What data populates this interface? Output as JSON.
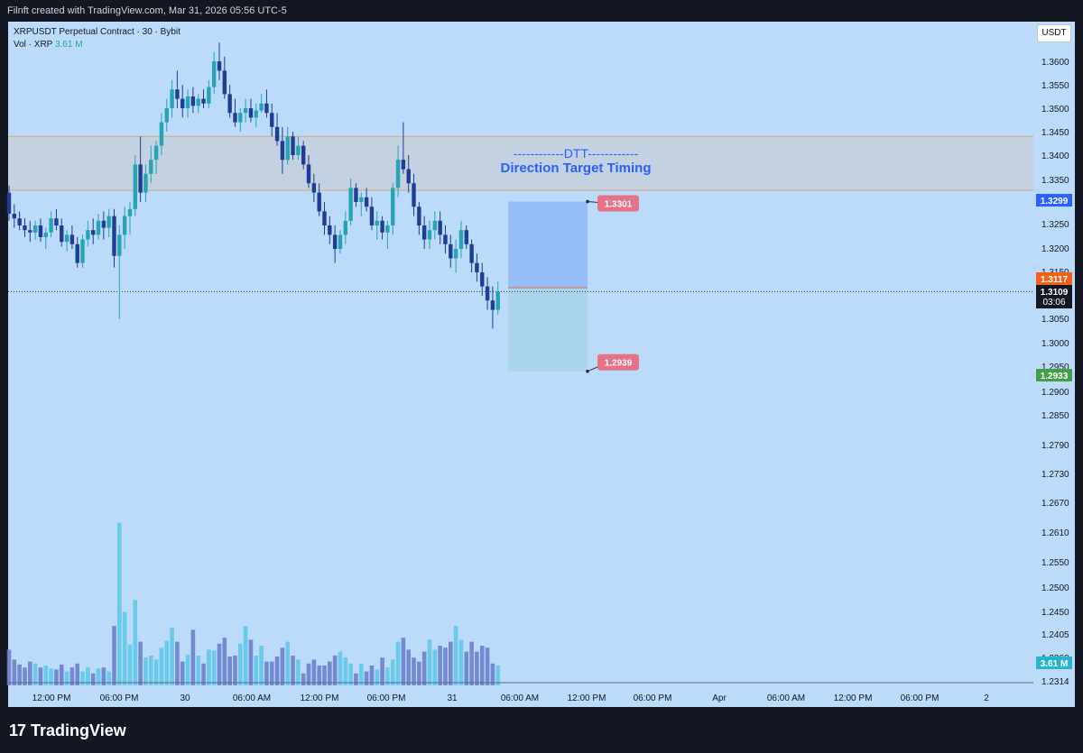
{
  "header": {
    "text": "Filnft created with TradingView.com, Mar 31, 2026 05:56 UTC-5"
  },
  "legend": {
    "symbol": "XRPUSDT Perpetual Contract · 30 · Bybit",
    "vol_label": "Vol · XRP",
    "vol_value": "3.61 M"
  },
  "currency": "USDT",
  "brand": {
    "logo": "17",
    "name": "TradingView"
  },
  "colors": {
    "background": "#bcdafa",
    "up": "#26a4b4",
    "down": "#1e3e96",
    "zone": "#c4cfda",
    "zone_line": "#d4a87a"
  },
  "chart_data": {
    "type": "candlestick",
    "symbol": "XRPUSDT Perpetual Contract",
    "interval": "30",
    "exchange": "Bybit",
    "y_ticks": [
      "1.3600",
      "1.3550",
      "1.3500",
      "1.3450",
      "1.3400",
      "1.3350",
      "1.3250",
      "1.3200",
      "1.3150",
      "1.3050",
      "1.3000",
      "1.2950",
      "1.2900",
      "1.2850",
      "1.2790",
      "1.2730",
      "1.2670",
      "1.2610",
      "1.2550",
      "1.2500",
      "1.2450",
      "1.2405",
      "1.2360",
      "1.2314"
    ],
    "x_ticks": [
      "12:00 PM",
      "06:00 PM",
      "30",
      "06:00 AM",
      "12:00 PM",
      "06:00 PM",
      "31",
      "06:00 AM",
      "12:00 PM",
      "06:00 PM",
      "Apr",
      "06:00 AM",
      "12:00 PM",
      "06:00 PM",
      "2"
    ],
    "price_labels": {
      "upper": "1.3299",
      "last": "1.3117",
      "current": "1.3109",
      "countdown": "03:06",
      "lower": "1.2933",
      "volume": "3.61 M"
    },
    "zone": {
      "low": 1.3325,
      "high": 1.344,
      "title": "------------DTT------------",
      "subtitle": "Direction Target Timing"
    },
    "position": {
      "entry": 1.3117,
      "target": 1.3301,
      "stop": 1.2939,
      "target_label": "1.3301",
      "stop_label": "1.2939"
    },
    "candles": [
      [
        1.332,
        1.3335,
        1.326,
        1.3275,
        36
      ],
      [
        1.3275,
        1.3295,
        1.3245,
        1.3265,
        26
      ],
      [
        1.3265,
        1.328,
        1.324,
        1.325,
        21
      ],
      [
        1.325,
        1.3265,
        1.3225,
        1.324,
        18
      ],
      [
        1.324,
        1.326,
        1.3215,
        1.3235,
        24
      ],
      [
        1.3235,
        1.326,
        1.322,
        1.325,
        22
      ],
      [
        1.325,
        1.3265,
        1.3215,
        1.3225,
        18
      ],
      [
        1.3225,
        1.3245,
        1.32,
        1.3235,
        20
      ],
      [
        1.3235,
        1.328,
        1.3225,
        1.3265,
        17
      ],
      [
        1.3265,
        1.3285,
        1.324,
        1.325,
        16
      ],
      [
        1.325,
        1.3265,
        1.3205,
        1.3215,
        21
      ],
      [
        1.3215,
        1.324,
        1.3195,
        1.323,
        14
      ],
      [
        1.323,
        1.325,
        1.32,
        1.321,
        18
      ],
      [
        1.321,
        1.3225,
        1.316,
        1.317,
        22
      ],
      [
        1.317,
        1.323,
        1.316,
        1.322,
        14
      ],
      [
        1.322,
        1.326,
        1.3205,
        1.324,
        18
      ],
      [
        1.324,
        1.3265,
        1.321,
        1.323,
        12
      ],
      [
        1.323,
        1.3275,
        1.322,
        1.326,
        17
      ],
      [
        1.326,
        1.328,
        1.322,
        1.3245,
        18
      ],
      [
        1.3245,
        1.3285,
        1.3225,
        1.327,
        14
      ],
      [
        1.327,
        1.3285,
        1.316,
        1.3185,
        60
      ],
      [
        1.3185,
        1.325,
        1.305,
        1.323,
        164
      ],
      [
        1.323,
        1.329,
        1.32,
        1.327,
        74
      ],
      [
        1.327,
        1.33,
        1.323,
        1.3285,
        41
      ],
      [
        1.3285,
        1.34,
        1.327,
        1.338,
        86
      ],
      [
        1.338,
        1.344,
        1.33,
        1.332,
        44
      ],
      [
        1.332,
        1.338,
        1.33,
        1.336,
        28
      ],
      [
        1.336,
        1.342,
        1.334,
        1.339,
        30
      ],
      [
        1.339,
        1.343,
        1.336,
        1.342,
        26
      ],
      [
        1.342,
        1.349,
        1.34,
        1.347,
        38
      ],
      [
        1.347,
        1.352,
        1.345,
        1.35,
        45
      ],
      [
        1.35,
        1.356,
        1.348,
        1.354,
        58
      ],
      [
        1.354,
        1.358,
        1.35,
        1.352,
        44
      ],
      [
        1.352,
        1.355,
        1.348,
        1.35,
        24
      ],
      [
        1.35,
        1.354,
        1.348,
        1.3525,
        31
      ],
      [
        1.3525,
        1.3545,
        1.349,
        1.3505,
        56
      ],
      [
        1.3505,
        1.353,
        1.349,
        1.352,
        30
      ],
      [
        1.352,
        1.354,
        1.35,
        1.351,
        22
      ],
      [
        1.351,
        1.356,
        1.35,
        1.3545,
        36
      ],
      [
        1.3545,
        1.362,
        1.353,
        1.36,
        35
      ],
      [
        1.36,
        1.364,
        1.356,
        1.358,
        42
      ],
      [
        1.358,
        1.361,
        1.352,
        1.353,
        48
      ],
      [
        1.353,
        1.355,
        1.348,
        1.349,
        29
      ],
      [
        1.349,
        1.352,
        1.346,
        1.347,
        30
      ],
      [
        1.347,
        1.35,
        1.345,
        1.349,
        42
      ],
      [
        1.349,
        1.352,
        1.347,
        1.35,
        60
      ],
      [
        1.35,
        1.352,
        1.347,
        1.348,
        46
      ],
      [
        1.348,
        1.351,
        1.346,
        1.3495,
        30
      ],
      [
        1.3495,
        1.353,
        1.349,
        1.351,
        40
      ],
      [
        1.351,
        1.354,
        1.348,
        1.349,
        24
      ],
      [
        1.349,
        1.351,
        1.344,
        1.346,
        24
      ],
      [
        1.346,
        1.349,
        1.342,
        1.343,
        29
      ],
      [
        1.343,
        1.346,
        1.336,
        1.339,
        38
      ],
      [
        1.339,
        1.346,
        1.338,
        1.344,
        44
      ],
      [
        1.344,
        1.345,
        1.339,
        1.34,
        30
      ],
      [
        1.34,
        1.344,
        1.339,
        1.342,
        26
      ],
      [
        1.342,
        1.343,
        1.337,
        1.338,
        12
      ],
      [
        1.338,
        1.34,
        1.333,
        1.334,
        22
      ],
      [
        1.334,
        1.336,
        1.33,
        1.332,
        26
      ],
      [
        1.332,
        1.334,
        1.327,
        1.328,
        20
      ],
      [
        1.328,
        1.33,
        1.323,
        1.325,
        20
      ],
      [
        1.325,
        1.327,
        1.321,
        1.323,
        24
      ],
      [
        1.323,
        1.325,
        1.317,
        1.32,
        30
      ],
      [
        1.32,
        1.324,
        1.319,
        1.323,
        34
      ],
      [
        1.323,
        1.328,
        1.321,
        1.326,
        28
      ],
      [
        1.326,
        1.335,
        1.325,
        1.333,
        22
      ],
      [
        1.333,
        1.334,
        1.329,
        1.33,
        12
      ],
      [
        1.33,
        1.332,
        1.327,
        1.331,
        22
      ],
      [
        1.331,
        1.333,
        1.328,
        1.329,
        14
      ],
      [
        1.329,
        1.331,
        1.324,
        1.325,
        20
      ],
      [
        1.325,
        1.328,
        1.322,
        1.326,
        16
      ],
      [
        1.326,
        1.327,
        1.322,
        1.3235,
        28
      ],
      [
        1.3235,
        1.326,
        1.32,
        1.325,
        18
      ],
      [
        1.325,
        1.334,
        1.323,
        1.333,
        26
      ],
      [
        1.333,
        1.342,
        1.331,
        1.339,
        44
      ],
      [
        1.339,
        1.347,
        1.336,
        1.337,
        48
      ],
      [
        1.337,
        1.34,
        1.332,
        1.334,
        36
      ],
      [
        1.334,
        1.336,
        1.327,
        1.329,
        28
      ],
      [
        1.329,
        1.33,
        1.323,
        1.325,
        24
      ],
      [
        1.325,
        1.327,
        1.32,
        1.322,
        34
      ],
      [
        1.322,
        1.326,
        1.32,
        1.324,
        46
      ],
      [
        1.324,
        1.328,
        1.322,
        1.326,
        36
      ],
      [
        1.326,
        1.328,
        1.321,
        1.323,
        40
      ],
      [
        1.323,
        1.325,
        1.319,
        1.321,
        38
      ],
      [
        1.321,
        1.323,
        1.316,
        1.318,
        44
      ],
      [
        1.318,
        1.322,
        1.315,
        1.32,
        60
      ],
      [
        1.32,
        1.326,
        1.318,
        1.324,
        46
      ],
      [
        1.324,
        1.325,
        1.32,
        1.321,
        34
      ],
      [
        1.321,
        1.322,
        1.315,
        1.317,
        44
      ],
      [
        1.317,
        1.319,
        1.313,
        1.315,
        34
      ],
      [
        1.315,
        1.317,
        1.31,
        1.312,
        40
      ],
      [
        1.312,
        1.314,
        1.307,
        1.309,
        38
      ],
      [
        1.309,
        1.312,
        1.303,
        1.307,
        22
      ],
      [
        1.307,
        1.313,
        1.306,
        1.3109,
        20
      ]
    ]
  }
}
